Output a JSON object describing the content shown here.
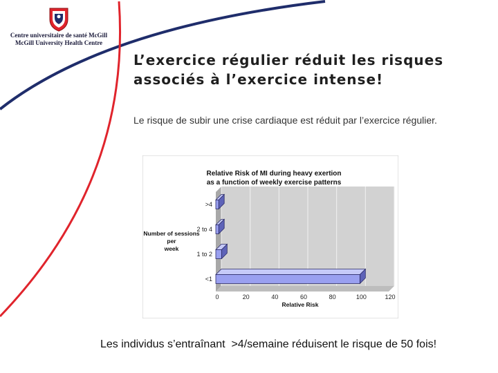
{
  "header": {
    "institution_fr": "Centre universitaire de santé McGill",
    "institution_en": "McGill University Health Centre"
  },
  "icons": {
    "logo": "mcgill-shield-logo-icon"
  },
  "colors": {
    "accent_red": "#e0242c",
    "navy": "#1f2d6b",
    "bar_fill": "#9aa0f0",
    "bar_edge": "#2a2a66"
  },
  "slide": {
    "title": "L’exercice régulier réduit les risques associés à l’exercice intense!",
    "body": "Le risque de subir une crise cardiaque est réduit par l’exercice régulier.",
    "footer": "Les individus s’entraînant  >4/semaine réduisent le risque de 50 fois!"
  },
  "chart_data": {
    "type": "bar",
    "orientation": "horizontal",
    "title": "Relative Risk of MI during heavy exertion as a function of weekly exercise patterns",
    "xlabel": "Relative Risk",
    "ylabel": "Number of sessions per week",
    "categories": [
      ">4",
      "2 to 4",
      "1 to 2",
      "<1"
    ],
    "values": [
      2,
      2,
      4,
      100
    ],
    "xlim": [
      0,
      120
    ],
    "xticks": [
      "0",
      "20",
      "40",
      "60",
      "80",
      "100",
      "120"
    ],
    "grid": true,
    "legend": "none"
  }
}
